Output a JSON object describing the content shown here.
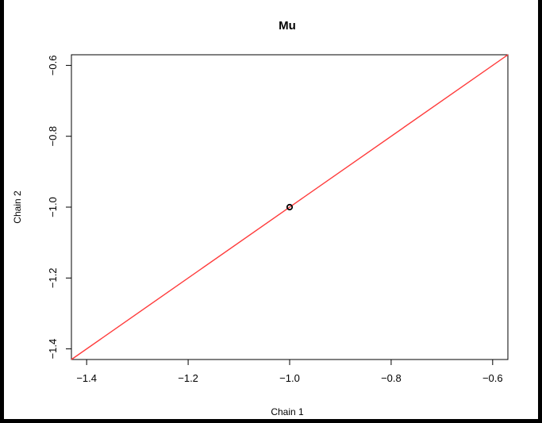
{
  "chart_data": {
    "type": "scatter",
    "title": "Mu",
    "xlabel": "Chain 1",
    "ylabel": "Chain 2",
    "xlim": [
      -1.43,
      -0.57
    ],
    "ylim": [
      -1.43,
      -0.57
    ],
    "x_ticks": [
      {
        "value": -1.4,
        "label": "−1.4"
      },
      {
        "value": -1.2,
        "label": "−1.2"
      },
      {
        "value": -1.0,
        "label": "−1.0"
      },
      {
        "value": -0.8,
        "label": "−0.8"
      },
      {
        "value": -0.6,
        "label": "−0.6"
      }
    ],
    "y_ticks": [
      {
        "value": -1.4,
        "label": "−1.4"
      },
      {
        "value": -1.2,
        "label": "−1.2"
      },
      {
        "value": -1.0,
        "label": "−1.0"
      },
      {
        "value": -0.8,
        "label": "−0.8"
      },
      {
        "value": -0.6,
        "label": "−0.6"
      }
    ],
    "points": [
      {
        "x": -1.0,
        "y": -1.0
      }
    ],
    "reference_line": {
      "type": "identity",
      "from": [
        -1.43,
        -1.43
      ],
      "to": [
        -0.57,
        -0.57
      ],
      "color": "#ff3b3b"
    },
    "grid": false,
    "legend": "none"
  }
}
